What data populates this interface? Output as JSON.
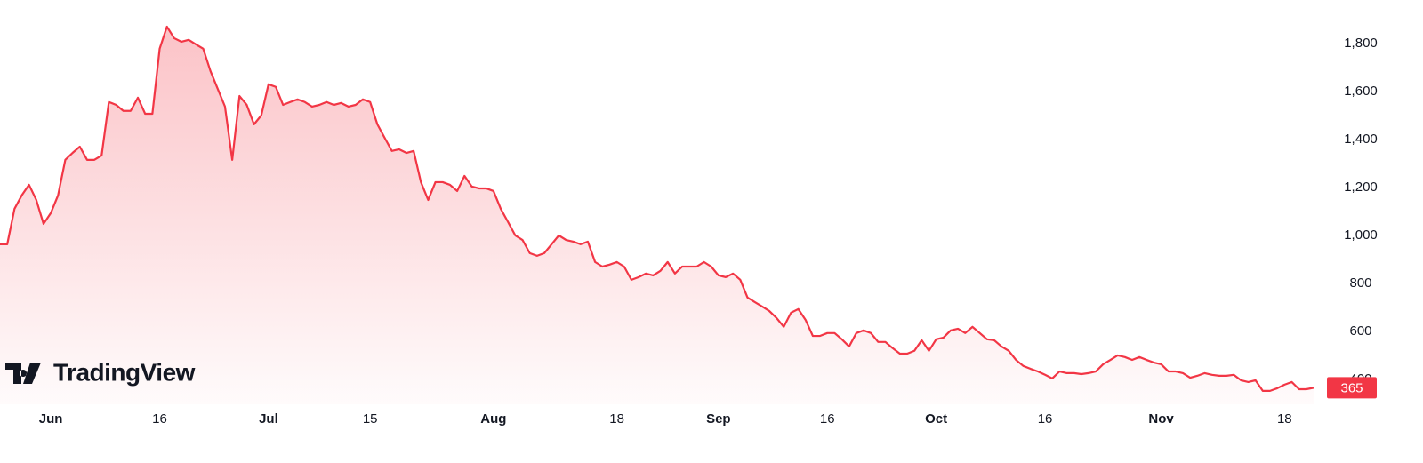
{
  "chart_data": {
    "type": "area",
    "watermark": "TradingView",
    "x": [
      "May 25",
      "May 26",
      "May 27",
      "May 28",
      "May 29",
      "May 30",
      "May 31",
      "Jun 1",
      "Jun 2",
      "Jun 3",
      "Jun 4",
      "Jun 5",
      "Jun 6",
      "Jun 7",
      "Jun 8",
      "Jun 9",
      "Jun 10",
      "Jun 11",
      "Jun 12",
      "Jun 13",
      "Jun 14",
      "Jun 15",
      "Jun 16",
      "Jun 17",
      "Jun 18",
      "Jun 19",
      "Jun 20",
      "Jun 21",
      "Jun 22",
      "Jun 23",
      "Jun 24",
      "Jun 25",
      "Jun 26",
      "Jun 27",
      "Jun 28",
      "Jun 29",
      "Jun 30",
      "Jul 1",
      "Jul 2",
      "Jul 3",
      "Jul 4",
      "Jul 5",
      "Jul 6",
      "Jul 7",
      "Jul 8",
      "Jul 9",
      "Jul 10",
      "Jul 11",
      "Jul 12",
      "Jul 13",
      "Jul 14",
      "Jul 15",
      "Jul 16",
      "Jul 17",
      "Jul 18",
      "Jul 19",
      "Jul 20",
      "Jul 21",
      "Jul 22",
      "Jul 23",
      "Jul 24",
      "Jul 25",
      "Jul 26",
      "Jul 27",
      "Jul 28",
      "Jul 29",
      "Jul 30",
      "Jul 31",
      "Aug 1",
      "Aug 2",
      "Aug 3",
      "Aug 4",
      "Aug 5",
      "Aug 6",
      "Aug 7",
      "Aug 8",
      "Aug 9",
      "Aug 10",
      "Aug 11",
      "Aug 12",
      "Aug 13",
      "Aug 14",
      "Aug 15",
      "Aug 16",
      "Aug 17",
      "Aug 18",
      "Aug 19",
      "Aug 20",
      "Aug 21",
      "Aug 22",
      "Aug 23",
      "Aug 24",
      "Aug 25",
      "Aug 26",
      "Aug 27",
      "Aug 28",
      "Aug 29",
      "Aug 30",
      "Aug 31",
      "Sep 1",
      "Sep 2",
      "Sep 3",
      "Sep 4",
      "Sep 5",
      "Sep 6",
      "Sep 7",
      "Sep 8",
      "Sep 9",
      "Sep 10",
      "Sep 11",
      "Sep 12",
      "Sep 13",
      "Sep 14",
      "Sep 15",
      "Sep 16",
      "Sep 17",
      "Sep 18",
      "Sep 19",
      "Sep 20",
      "Sep 21",
      "Sep 22",
      "Sep 23",
      "Sep 24",
      "Sep 25",
      "Sep 26",
      "Sep 27",
      "Sep 28",
      "Sep 29",
      "Sep 30",
      "Oct 1",
      "Oct 2",
      "Oct 3",
      "Oct 4",
      "Oct 5",
      "Oct 6",
      "Oct 7",
      "Oct 8",
      "Oct 9",
      "Oct 10",
      "Oct 11",
      "Oct 12",
      "Oct 13",
      "Oct 14",
      "Oct 15",
      "Oct 16",
      "Oct 17",
      "Oct 18",
      "Oct 19",
      "Oct 20",
      "Oct 21",
      "Oct 22",
      "Oct 23",
      "Oct 24",
      "Oct 25",
      "Oct 26",
      "Oct 27",
      "Oct 28",
      "Oct 29",
      "Oct 30",
      "Oct 31",
      "Nov 1",
      "Nov 2",
      "Nov 3",
      "Nov 4",
      "Nov 5",
      "Nov 6",
      "Nov 7",
      "Nov 8",
      "Nov 9",
      "Nov 10",
      "Nov 11",
      "Nov 12",
      "Nov 13",
      "Nov 14",
      "Nov 15",
      "Nov 16",
      "Nov 17",
      "Nov 18",
      "Nov 19",
      "Nov 20",
      "Nov 21",
      "Nov 22"
    ],
    "series": [
      {
        "color": "#f23645",
        "values": [
          963,
          963,
          1111,
          1167,
          1211,
          1148,
          1048,
          1093,
          1167,
          1315,
          1344,
          1370,
          1315,
          1315,
          1333,
          1556,
          1544,
          1519,
          1519,
          1574,
          1507,
          1507,
          1778,
          1870,
          1822,
          1807,
          1815,
          1796,
          1778,
          1685,
          1611,
          1537,
          1315,
          1581,
          1544,
          1463,
          1500,
          1630,
          1619,
          1544,
          1556,
          1567,
          1556,
          1537,
          1544,
          1556,
          1544,
          1552,
          1537,
          1544,
          1567,
          1556,
          1463,
          1407,
          1352,
          1359,
          1344,
          1352,
          1222,
          1148,
          1222,
          1222,
          1211,
          1185,
          1248,
          1204,
          1196,
          1196,
          1185,
          1111,
          1056,
          1000,
          981,
          926,
          915,
          926,
          963,
          1000,
          981,
          974,
          963,
          974,
          889,
          870,
          878,
          889,
          870,
          815,
          826,
          841,
          833,
          852,
          889,
          841,
          870,
          870,
          870,
          889,
          870,
          833,
          826,
          841,
          815,
          741,
          722,
          704,
          685,
          656,
          619,
          678,
          693,
          648,
          581,
          581,
          593,
          593,
          567,
          537,
          593,
          604,
          593,
          556,
          556,
          530,
          507,
          507,
          519,
          563,
          519,
          567,
          574,
          604,
          611,
          593,
          619,
          593,
          567,
          563,
          537,
          519,
          481,
          456,
          444,
          433,
          419,
          404,
          433,
          426,
          426,
          422,
          426,
          433,
          463,
          481,
          500,
          493,
          481,
          493,
          481,
          470,
          463,
          433,
          433,
          426,
          407,
          415,
          426,
          419,
          415,
          415,
          419,
          396,
          389,
          396,
          352,
          352,
          363,
          378,
          389,
          359,
          359,
          365
        ]
      }
    ],
    "xticks": [
      {
        "value": "Jun 1",
        "label": "Jun"
      },
      {
        "value": "Jun 16",
        "label": "16"
      },
      {
        "value": "Jul 1",
        "label": "Jul"
      },
      {
        "value": "Jul 15",
        "label": "15"
      },
      {
        "value": "Aug 1",
        "label": "Aug"
      },
      {
        "value": "Aug 18",
        "label": "18"
      },
      {
        "value": "Sep 1",
        "label": "Sep"
      },
      {
        "value": "Sep 16",
        "label": "16"
      },
      {
        "value": "Oct 1",
        "label": "Oct"
      },
      {
        "value": "Oct 16",
        "label": "16"
      },
      {
        "value": "Nov 1",
        "label": "Nov"
      },
      {
        "value": "Nov 18",
        "label": "18"
      }
    ],
    "ylim": [
      296,
      1981
    ],
    "yticks": [
      400,
      {
        "value": 600,
        "label": "600"
      },
      800,
      {
        "value": 1000,
        "label": "1,000"
      },
      {
        "value": 1200,
        "label": "1,200"
      },
      {
        "value": 1400,
        "label": "1,400"
      },
      {
        "value": 1600,
        "label": "1,600"
      },
      {
        "value": 1800,
        "label": "1,800"
      }
    ],
    "grid": false
  }
}
